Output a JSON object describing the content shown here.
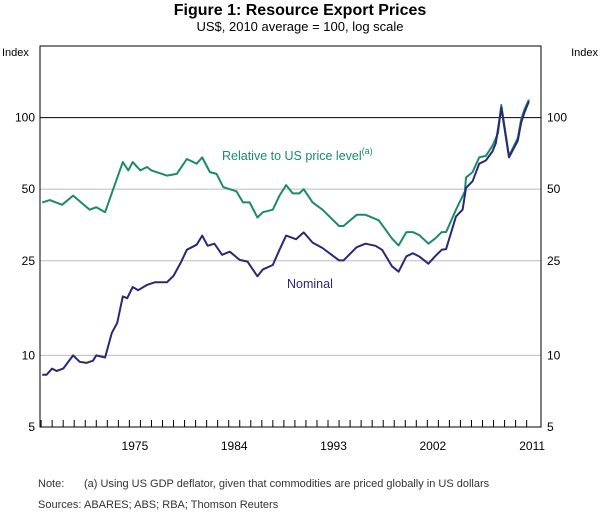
{
  "chart_data": {
    "type": "line",
    "title": "Figure 1: Resource Export Prices",
    "subtitle": "US$, 2010 average = 100, log scale",
    "ylabel_left": "Index",
    "ylabel_right": "Index",
    "y_scale": "log",
    "ylim": [
      5,
      200
    ],
    "xlim": [
      1966.4,
      2011.8
    ],
    "y_ticks": [
      5,
      10,
      25,
      50,
      100
    ],
    "x_tick_labels": [
      "1975",
      "1984",
      "1993",
      "2002",
      "2011"
    ],
    "x_tick_values": [
      1975,
      1984,
      1993,
      2002,
      2011
    ],
    "reference_line": 100,
    "grid": true,
    "series": [
      {
        "name": "Relative to US price level",
        "superscript": "(a)",
        "color": "#1b8a6b",
        "x": [
          1966.6,
          1967.3,
          1968.4,
          1969.4,
          1970.9,
          1971.5,
          1972.3,
          1972.9,
          1973.9,
          1974.4,
          1974.8,
          1975.5,
          1976.1,
          1976.5,
          1977.9,
          1978.8,
          1979.7,
          1980.6,
          1981.1,
          1981.8,
          1982.4,
          1983.0,
          1984.2,
          1984.8,
          1985.4,
          1986.1,
          1986.6,
          1987.5,
          1988.1,
          1988.7,
          1989.3,
          1989.9,
          1990.3,
          1991.1,
          1992.0,
          1993.5,
          1993.9,
          1995.1,
          1995.9,
          1997.1,
          1998.3,
          1998.9,
          1999.6,
          2000.2,
          2000.8,
          2001.6,
          2002.2,
          2002.8,
          2003.2,
          2004.1,
          2004.9,
          2005.0,
          2005.6,
          2006.2,
          2006.8,
          2007.4,
          2007.9,
          2008.2,
          2008.9,
          2009.7,
          2010.0,
          2010.3,
          2010.7
        ],
        "y": [
          44,
          45,
          43,
          47,
          41,
          42,
          40,
          48,
          65,
          60,
          65,
          60,
          62,
          60,
          57,
          58,
          67,
          64,
          68,
          59,
          58,
          51,
          49,
          44,
          44,
          38,
          40,
          41,
          47,
          52,
          48,
          48,
          50,
          44,
          41,
          35,
          35,
          39,
          39,
          37,
          31,
          29,
          33,
          33,
          32,
          29.5,
          31,
          33,
          33,
          41,
          49,
          56,
          59,
          68,
          69,
          76,
          86,
          113,
          69,
          82,
          98,
          108,
          119
        ]
      },
      {
        "name": "Nominal",
        "color": "#2a2878",
        "x": [
          1966.6,
          1967.0,
          1967.5,
          1967.9,
          1968.5,
          1969.4,
          1970.0,
          1970.6,
          1971.2,
          1971.5,
          1972.3,
          1972.9,
          1973.4,
          1973.9,
          1974.3,
          1974.8,
          1975.3,
          1976.1,
          1976.8,
          1977.9,
          1978.5,
          1979.2,
          1979.7,
          1980.6,
          1981.1,
          1981.6,
          1982.2,
          1982.9,
          1983.6,
          1984.5,
          1985.2,
          1986.1,
          1986.6,
          1987.5,
          1988.1,
          1988.7,
          1989.6,
          1990.3,
          1991.1,
          1992.0,
          1993.5,
          1993.9,
          1995.1,
          1995.9,
          1996.8,
          1997.4,
          1998.3,
          1998.9,
          1999.6,
          2000.2,
          2000.8,
          2001.6,
          2002.2,
          2002.8,
          2003.2,
          2004.1,
          2004.7,
          2005.0,
          2005.6,
          2006.2,
          2006.8,
          2007.4,
          2007.7,
          2008.2,
          2008.9,
          2009.7,
          2010.0,
          2010.3,
          2010.7
        ],
        "y": [
          8.3,
          8.3,
          8.8,
          8.6,
          8.8,
          10,
          9.4,
          9.3,
          9.5,
          10,
          9.8,
          12.4,
          13.7,
          17.7,
          17.4,
          19.4,
          18.8,
          19.8,
          20.3,
          20.3,
          21.6,
          24.8,
          27.8,
          29.2,
          31.9,
          28.9,
          29.5,
          26.5,
          27.3,
          25.2,
          24.8,
          21.5,
          23,
          24,
          27.8,
          31.9,
          30.8,
          32.9,
          29.8,
          28.3,
          25.1,
          25.1,
          28.5,
          29.5,
          28.9,
          27.8,
          23.7,
          22.5,
          26.1,
          26.9,
          26,
          24.3,
          26.1,
          27.8,
          28,
          38.4,
          41,
          50.6,
          54,
          64,
          66,
          72,
          78,
          110,
          68,
          80,
          95,
          105,
          117
        ]
      }
    ]
  },
  "notes": {
    "note_label": "Note:",
    "note_text": "(a) Using US GDP deflator, given that commodities are priced globally in US dollars",
    "sources_label": "Sources:",
    "sources_text": "ABARES; ABS; RBA; Thomson Reuters"
  }
}
